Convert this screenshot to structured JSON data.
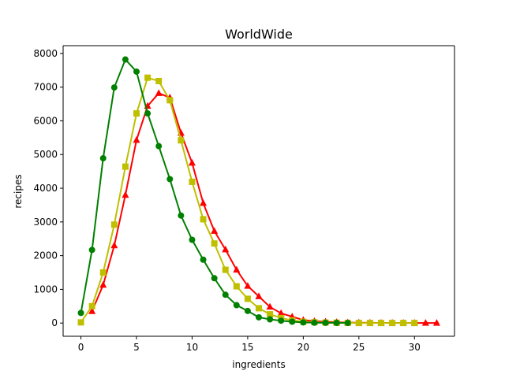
{
  "chart_data": {
    "type": "line",
    "title": "WorldWide",
    "xlabel": "ingredients",
    "ylabel": "recipes",
    "xlim": [
      -1.6,
      33.6
    ],
    "ylim": [
      -392,
      8230
    ],
    "xticks": [
      0,
      5,
      10,
      15,
      20,
      25,
      30
    ],
    "yticks": [
      0,
      1000,
      2000,
      3000,
      4000,
      5000,
      6000,
      7000,
      8000
    ],
    "grid": false,
    "series": [
      {
        "color": "#ff0000",
        "marker": "triangle",
        "x": [
          1,
          2,
          3,
          4,
          5,
          6,
          7,
          8,
          9,
          10,
          11,
          12,
          13,
          14,
          15,
          16,
          17,
          18,
          19,
          20,
          21,
          22,
          23,
          24,
          25,
          26,
          27,
          28,
          29,
          30,
          31,
          32
        ],
        "values": [
          350,
          1130,
          2300,
          3800,
          5430,
          6440,
          6820,
          6690,
          5640,
          4750,
          3560,
          2730,
          2180,
          1580,
          1100,
          790,
          480,
          290,
          190,
          90,
          55,
          40,
          25,
          15,
          10,
          8,
          5,
          4,
          3,
          2,
          2,
          2
        ]
      },
      {
        "color": "#bfbf00",
        "marker": "square",
        "x": [
          0,
          1,
          2,
          3,
          4,
          5,
          6,
          7,
          8,
          9,
          10,
          11,
          12,
          13,
          14,
          15,
          16,
          17,
          18,
          19,
          20,
          21,
          22,
          23,
          24,
          25,
          26,
          27,
          28,
          29,
          30
        ],
        "values": [
          20,
          500,
          1500,
          2920,
          4640,
          6220,
          7280,
          7180,
          6610,
          5420,
          4190,
          3080,
          2360,
          1580,
          1090,
          720,
          440,
          260,
          150,
          80,
          40,
          25,
          15,
          10,
          5,
          3,
          3,
          2,
          2,
          2,
          2
        ]
      },
      {
        "color": "#008000",
        "marker": "circle",
        "x": [
          0,
          1,
          2,
          3,
          4,
          5,
          6,
          7,
          8,
          9,
          10,
          11,
          12,
          13,
          14,
          15,
          16,
          17,
          18,
          19,
          20,
          21,
          22,
          23,
          24
        ],
        "values": [
          300,
          2170,
          4890,
          6990,
          7820,
          7460,
          6220,
          5250,
          4270,
          3190,
          2470,
          1880,
          1330,
          840,
          530,
          360,
          170,
          110,
          70,
          40,
          20,
          10,
          8,
          5,
          3
        ]
      }
    ]
  }
}
